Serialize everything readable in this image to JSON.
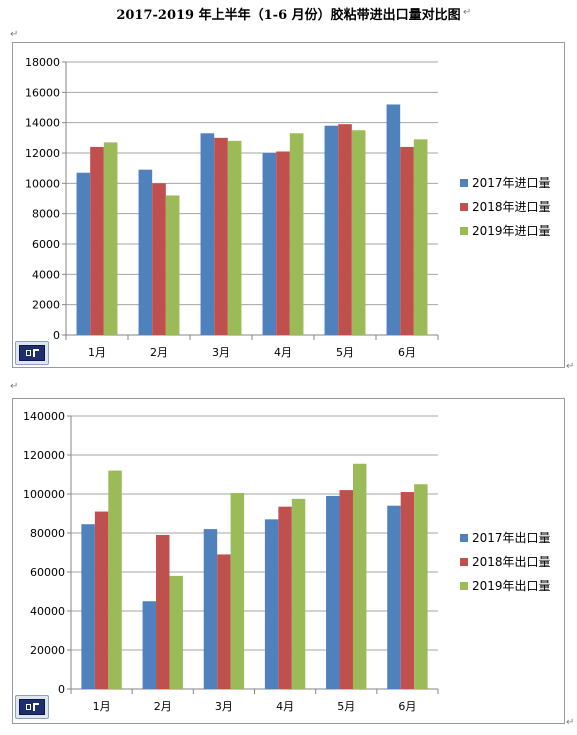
{
  "title": "2017-2019 年上半年（1-6 月份）胶粘带进出口量对比图",
  "paragraph_mark": "↵",
  "colors": {
    "s2017": "#4f81bd",
    "s2018": "#c0504d",
    "s2019": "#9bbb59",
    "grid": "#a6a6a6",
    "axis": "#868686"
  },
  "chart_data": [
    {
      "type": "bar",
      "title": "",
      "xlabel": "",
      "ylabel": "",
      "categories": [
        "1月",
        "2月",
        "3月",
        "4月",
        "5月",
        "6月"
      ],
      "ylim": [
        0,
        18000
      ],
      "yticks": [
        0,
        2000,
        4000,
        6000,
        8000,
        10000,
        12000,
        14000,
        16000,
        18000
      ],
      "grid": true,
      "legend_position": "right",
      "series": [
        {
          "name": "2017年进口量",
          "color": "#4f81bd",
          "values": [
            10700,
            10900,
            13300,
            12000,
            13800,
            15200
          ]
        },
        {
          "name": "2018年进口量",
          "color": "#c0504d",
          "values": [
            12400,
            10000,
            13000,
            12100,
            13900,
            12400
          ]
        },
        {
          "name": "2019年进口量",
          "color": "#9bbb59",
          "values": [
            12700,
            9200,
            12800,
            13300,
            13500,
            12900
          ]
        }
      ]
    },
    {
      "type": "bar",
      "title": "",
      "xlabel": "",
      "ylabel": "",
      "categories": [
        "1月",
        "2月",
        "3月",
        "4月",
        "5月",
        "6月"
      ],
      "ylim": [
        0,
        140000
      ],
      "yticks": [
        0,
        20000,
        40000,
        60000,
        80000,
        100000,
        120000,
        140000
      ],
      "grid": true,
      "legend_position": "right",
      "series": [
        {
          "name": "2017年出口量",
          "color": "#4f81bd",
          "values": [
            84500,
            45000,
            82000,
            87000,
            99000,
            94000
          ]
        },
        {
          "name": "2018年出口量",
          "color": "#c0504d",
          "values": [
            91000,
            79000,
            69000,
            93500,
            102000,
            101000
          ]
        },
        {
          "name": "2019年出口量",
          "color": "#9bbb59",
          "values": [
            112000,
            58000,
            100500,
            97500,
            115500,
            105000
          ]
        }
      ]
    }
  ]
}
